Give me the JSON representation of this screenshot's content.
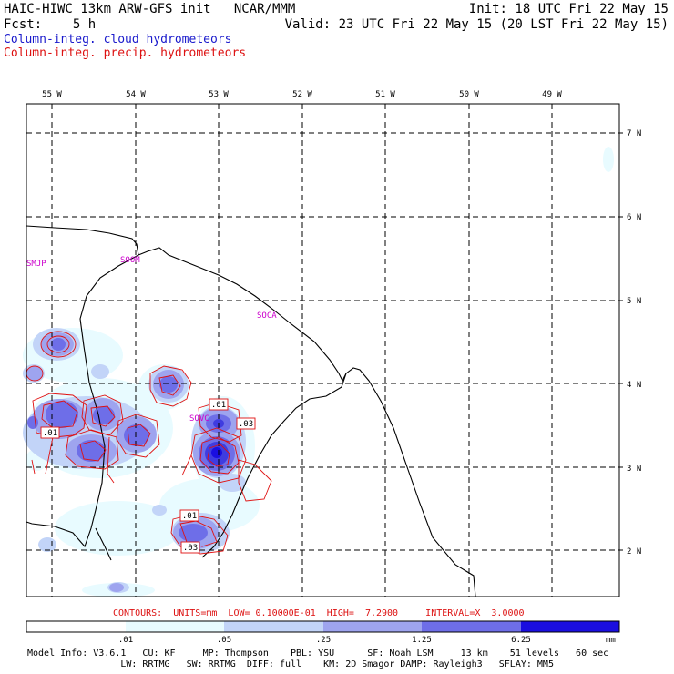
{
  "header": {
    "title": "HAIC-HIWC 13km ARW-GFS init   NCAR/MMM",
    "init": "Init: 18 UTC Fri 22 May 15",
    "fcst": "Fcst:    5 h",
    "valid": "Valid: 23 UTC Fri 22 May 15 (20 LST Fri 22 May 15)",
    "legend_cloud": "Column-integ. cloud hydrometeors",
    "legend_precip": "Column-integ. precip. hydrometeors"
  },
  "colors": {
    "cloud_text": "#1a1acc",
    "precip_text": "#dd1111",
    "station_text": "#cc00cc",
    "shade_1": "#e8fbff",
    "shade_2": "#c2d4f8",
    "shade_3": "#9ea4ef",
    "shade_4": "#6e6ee8",
    "shade_5": "#3f3ce0",
    "shade_6": "#1a0ee0"
  },
  "axes": {
    "lon_labels": [
      "55 W",
      "54 W",
      "53 W",
      "52 W",
      "51 W",
      "50 W",
      "49 W"
    ],
    "lat_labels": [
      "7 N",
      "6 N",
      "5 N",
      "4 N",
      "3 N",
      "2 N"
    ]
  },
  "stations": [
    "SMJP",
    "SOOM",
    "SOCA",
    "SOVC"
  ],
  "contour_labels": [
    ".01",
    ".03",
    ".01",
    ".01",
    ".03"
  ],
  "contours_info": "CONTOURS:  UNITS=mm  LOW= 0.10000E-01  HIGH=  7.2900     INTERVAL=X  3.0000",
  "colorbar": {
    "ticks": [
      ".01",
      ".05",
      ".25",
      "1.25",
      "6.25"
    ],
    "units": "mm"
  },
  "model_info": {
    "line1": "Model Info: V3.6.1   CU: KF     MP: Thompson    PBL: YSU      SF: Noah LSM     13 km    51 levels   60 sec",
    "line2": "                 LW: RRTMG   SW: RRTMG  DIFF: full    KM: 2D Smagor DAMP: Rayleigh3   SFLAY: MM5"
  }
}
